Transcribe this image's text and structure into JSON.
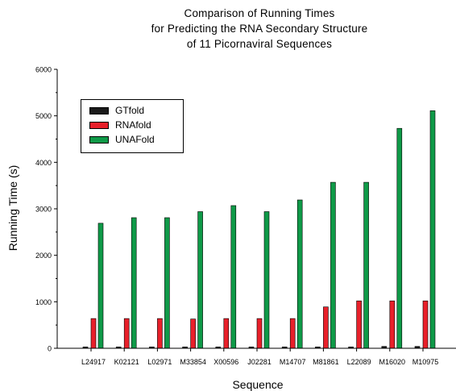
{
  "chart_data": {
    "type": "bar",
    "title": [
      "Comparison of Running Times",
      "for Predicting the RNA Secondary Structure",
      "of 11 Picornaviral Sequences"
    ],
    "xlabel": "Sequence",
    "ylabel": "Running Time (s)",
    "ylim": [
      0,
      6000
    ],
    "yticks": [
      "0",
      "1000",
      "2000",
      "3000",
      "4000",
      "5000",
      "6000"
    ],
    "categories": [
      "L24917",
      "K02121",
      "L02971",
      "M33854",
      "X00596",
      "J02281",
      "M14707",
      "M81861",
      "L22089",
      "M16020",
      "M10975"
    ],
    "series": [
      {
        "name": "GTfold",
        "color": "#1a1a1a",
        "values": [
          30,
          30,
          30,
          30,
          30,
          30,
          30,
          30,
          30,
          40,
          40
        ]
      },
      {
        "name": "RNAfold",
        "color": "#e8202a",
        "values": [
          640,
          640,
          640,
          630,
          640,
          640,
          640,
          890,
          1020,
          1020,
          1020
        ]
      },
      {
        "name": "UNAFold",
        "color": "#0f9a48",
        "values": [
          2690,
          2810,
          2810,
          2940,
          3070,
          2940,
          3190,
          3570,
          3570,
          4730,
          5110
        ]
      }
    ],
    "grid": false,
    "legend_position": "top-left"
  }
}
